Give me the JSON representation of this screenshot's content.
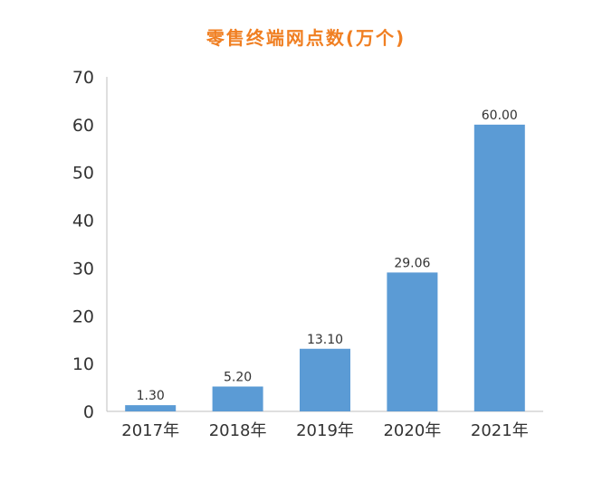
{
  "chart_data": {
    "type": "bar",
    "title": "零售终端网点数(万个)",
    "categories": [
      "2017年",
      "2018年",
      "2019年",
      "2020年",
      "2021年"
    ],
    "values": [
      1.3,
      5.2,
      13.1,
      29.06,
      60.0
    ],
    "value_labels": [
      "1.30",
      "5.20",
      "13.10",
      "29.06",
      "60.00"
    ],
    "xlabel": "",
    "ylabel": "",
    "ylim": [
      0,
      70
    ],
    "yticks": [
      "0",
      "10",
      "20",
      "30",
      "40",
      "50",
      "60",
      "70"
    ],
    "grid": false,
    "legend": "none",
    "bar_color": "#5b9bd5",
    "title_color": "#f07f22"
  }
}
